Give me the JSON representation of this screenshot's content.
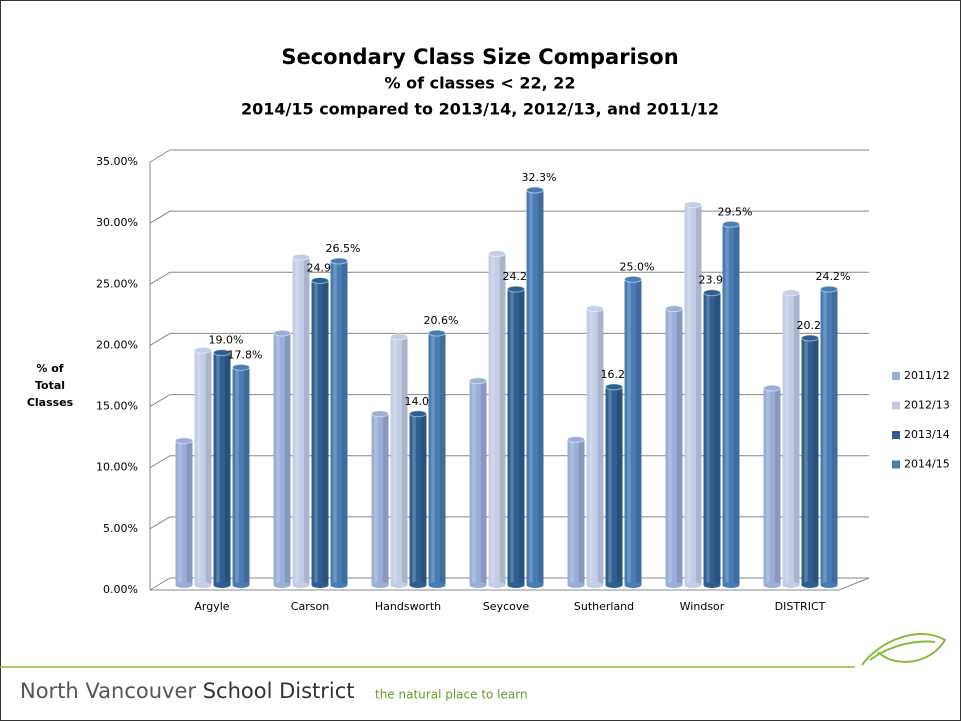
{
  "chart_data": {
    "type": "bar3d",
    "title": "Secondary Class Size Comparison",
    "subtitle": [
      "% of classes < 22, 22",
      "2014/15 compared to 2013/14, 2012/13, and 2011/12"
    ],
    "y_label": [
      "% of",
      "Total",
      "Classes"
    ],
    "categories": [
      "Argyle",
      "Carson",
      "Handsworth",
      "Seycove",
      "Sutherland",
      "Windsor",
      "DISTRICT"
    ],
    "series": [
      {
        "name": "2011/12",
        "color": "#9aaed6",
        "values": [
          11.8,
          20.6,
          14.0,
          16.7,
          11.9,
          22.6,
          16.1
        ]
      },
      {
        "name": "2012/13",
        "color": "#c3cde6",
        "values": [
          19.2,
          26.8,
          20.3,
          27.1,
          22.6,
          31.1,
          23.9
        ]
      },
      {
        "name": "2013/14",
        "color": "#2f5f90",
        "values": [
          19.0,
          24.9,
          14.0,
          24.2,
          16.2,
          23.9,
          20.2
        ],
        "value_labels": [
          "19.0%",
          "24.9%",
          "14.0%",
          "24.2%",
          "16.2%",
          "23.9%",
          "20.2%"
        ]
      },
      {
        "name": "2014/15",
        "color": "#4a7cb4",
        "values": [
          17.8,
          26.5,
          20.6,
          32.3,
          25.0,
          29.5,
          24.2
        ],
        "value_labels": [
          "17.8%",
          "26.5%",
          "20.6%",
          "32.3%",
          "25.0%",
          "29.5%",
          "24.2%"
        ]
      }
    ],
    "ylim": [
      0,
      35
    ],
    "yticks": [
      {
        "value": 0,
        "label": "0.00%"
      },
      {
        "value": 5,
        "label": "5.00%"
      },
      {
        "value": 10,
        "label": "10.00%"
      },
      {
        "value": 15,
        "label": "15.00%"
      },
      {
        "value": 20,
        "label": "20.00%"
      },
      {
        "value": 25,
        "label": "25.00%"
      },
      {
        "value": 30,
        "label": "30.00%"
      },
      {
        "value": 35,
        "label": "35.00%"
      }
    ],
    "grid": true,
    "legend": "right"
  },
  "footer": {
    "name_light": "North Vancouver",
    "name_bold": "School District",
    "tagline": "the natural place to learn"
  }
}
